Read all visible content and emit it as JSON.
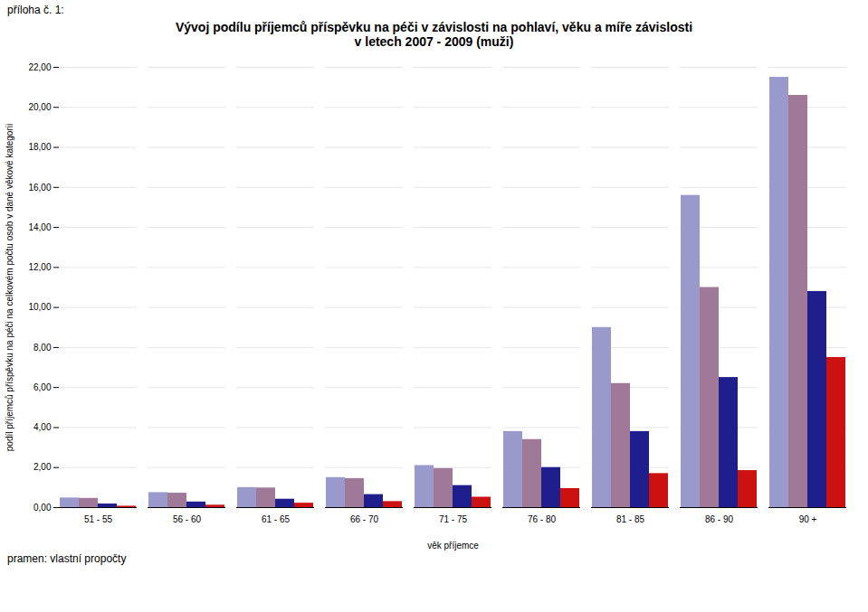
{
  "chart_data": {
    "type": "bar",
    "title": "Vývoj podílu příjemců příspěvku na péči v závislosti na pohlaví, věku a míře závislosti",
    "subtitle": "v letech 2007 - 2009 (muži)",
    "xlabel": "věk příjemce",
    "ylabel": "podíl příjemců příspěvku na péči na celkovém počtu osob v dané věkové kategorii",
    "annotations": [
      "příloha č. 1:",
      "pramen: vlastní propočty"
    ],
    "categories": [
      "51 - 55",
      "56 - 60",
      "61 - 65",
      "66 - 70",
      "71 - 75",
      "76 - 80",
      "81 - 85",
      "86 - 90",
      "90 +"
    ],
    "series": [
      {
        "color": "#9999CC",
        "values": [
          0.48,
          0.75,
          1.0,
          1.5,
          2.1,
          3.8,
          9.0,
          15.6,
          21.5
        ]
      },
      {
        "color": "#A07898",
        "values": [
          0.46,
          0.72,
          0.98,
          1.45,
          1.95,
          3.4,
          6.2,
          11.0,
          20.6
        ]
      },
      {
        "color": "#1E1E8C",
        "values": [
          0.18,
          0.28,
          0.42,
          0.65,
          1.1,
          2.0,
          3.8,
          6.5,
          10.8
        ]
      },
      {
        "color": "#CC1111",
        "values": [
          0.07,
          0.12,
          0.22,
          0.3,
          0.52,
          0.95,
          1.7,
          1.85,
          7.5
        ]
      }
    ],
    "ylim": [
      0,
      22.0
    ],
    "yticks": [
      {
        "value": 0.0,
        "label": "0,00"
      },
      {
        "value": 2.0,
        "label": "2,00"
      },
      {
        "value": 4.0,
        "label": "4,00"
      },
      {
        "value": 6.0,
        "label": "6,00"
      },
      {
        "value": 8.0,
        "label": "8,00"
      },
      {
        "value": 10.0,
        "label": "10,00"
      },
      {
        "value": 12.0,
        "label": "12,00"
      },
      {
        "value": 14.0,
        "label": "14,00"
      },
      {
        "value": 16.0,
        "label": "16,00"
      },
      {
        "value": 18.0,
        "label": "18,00"
      },
      {
        "value": 20.0,
        "label": "20,00"
      },
      {
        "value": 22.0,
        "label": "22,00"
      }
    ],
    "grid": true
  }
}
